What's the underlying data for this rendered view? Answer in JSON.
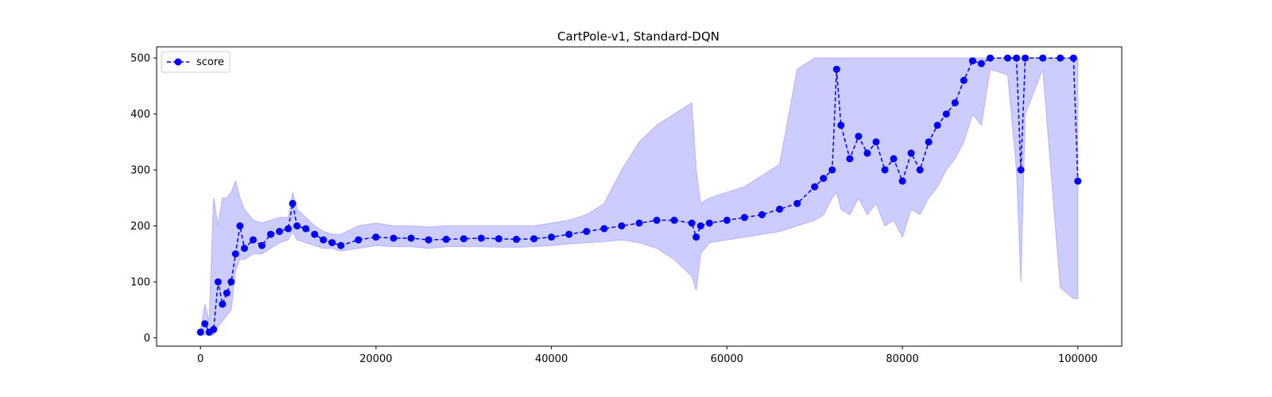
{
  "chart_data": {
    "type": "line",
    "title": "CartPole-v1, Standard-DQN",
    "xlabel": "",
    "ylabel": "",
    "xlim": [
      -5000,
      105000
    ],
    "ylim": [
      -15,
      520
    ],
    "xticks": [
      0,
      20000,
      40000,
      60000,
      80000,
      100000
    ],
    "yticks": [
      0,
      100,
      200,
      300,
      400,
      500
    ],
    "grid": false,
    "legend": {
      "position": "top-left",
      "entries": [
        "score"
      ]
    },
    "colors": {
      "line": "#0000ff",
      "band": "#ccccff",
      "band_edge": "#b3b3ff"
    },
    "series": [
      {
        "name": "score",
        "style": "dashed line with circle markers",
        "x": [
          0,
          500,
          1000,
          1500,
          2000,
          2500,
          3000,
          3500,
          4000,
          4500,
          5000,
          6000,
          7000,
          8000,
          9000,
          10000,
          10500,
          11000,
          12000,
          13000,
          14000,
          15000,
          16000,
          18000,
          20000,
          22000,
          24000,
          26000,
          28000,
          30000,
          32000,
          34000,
          36000,
          38000,
          40000,
          42000,
          44000,
          46000,
          48000,
          50000,
          52000,
          54000,
          56000,
          56500,
          57000,
          58000,
          60000,
          62000,
          64000,
          66000,
          68000,
          70000,
          71000,
          72000,
          72500,
          73000,
          74000,
          75000,
          76000,
          77000,
          78000,
          79000,
          80000,
          81000,
          82000,
          83000,
          84000,
          85000,
          86000,
          87000,
          88000,
          89000,
          90000,
          92000,
          93000,
          93500,
          94000,
          96000,
          98000,
          99500,
          100000
        ],
        "y": [
          10,
          25,
          10,
          15,
          100,
          60,
          80,
          100,
          150,
          200,
          160,
          175,
          165,
          185,
          190,
          195,
          240,
          200,
          195,
          185,
          175,
          170,
          165,
          175,
          180,
          178,
          178,
          175,
          176,
          177,
          178,
          177,
          176,
          177,
          180,
          185,
          190,
          195,
          200,
          205,
          210,
          210,
          205,
          180,
          200,
          205,
          210,
          215,
          220,
          230,
          240,
          270,
          285,
          300,
          480,
          380,
          320,
          360,
          330,
          350,
          300,
          320,
          280,
          330,
          300,
          350,
          380,
          400,
          420,
          460,
          495,
          490,
          500,
          500,
          500,
          300,
          500,
          500,
          500,
          500,
          280
        ],
        "band_upper": [
          15,
          60,
          30,
          250,
          200,
          250,
          250,
          260,
          280,
          250,
          230,
          210,
          205,
          210,
          215,
          215,
          260,
          230,
          215,
          200,
          190,
          185,
          185,
          200,
          205,
          200,
          200,
          198,
          200,
          200,
          200,
          200,
          200,
          200,
          205,
          210,
          220,
          240,
          300,
          350,
          380,
          400,
          420,
          300,
          240,
          250,
          260,
          270,
          290,
          310,
          480,
          500,
          500,
          500,
          500,
          500,
          500,
          500,
          500,
          500,
          500,
          500,
          500,
          500,
          500,
          500,
          500,
          500,
          500,
          500,
          500,
          500,
          500,
          500,
          500,
          500,
          500,
          500,
          500,
          500,
          500
        ],
        "band_lower": [
          5,
          5,
          5,
          5,
          20,
          30,
          40,
          50,
          120,
          140,
          140,
          150,
          150,
          160,
          170,
          175,
          190,
          175,
          170,
          165,
          160,
          160,
          155,
          160,
          165,
          163,
          163,
          160,
          163,
          163,
          163,
          162,
          162,
          163,
          165,
          168,
          170,
          172,
          175,
          170,
          160,
          140,
          110,
          85,
          150,
          170,
          175,
          180,
          185,
          190,
          200,
          210,
          220,
          250,
          260,
          230,
          220,
          250,
          220,
          240,
          200,
          210,
          180,
          230,
          220,
          250,
          270,
          300,
          320,
          350,
          400,
          380,
          480,
          470,
          300,
          100,
          400,
          480,
          90,
          70,
          70
        ]
      }
    ]
  }
}
